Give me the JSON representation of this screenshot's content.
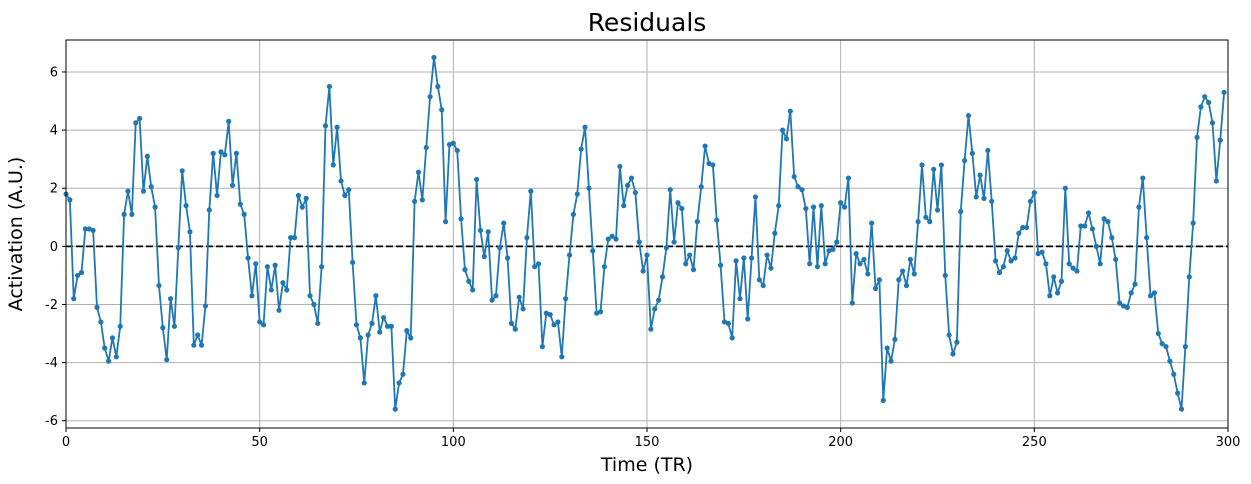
{
  "chart_data": {
    "type": "line",
    "title": "Residuals",
    "xlabel": "Time (TR)",
    "ylabel": "Activation (A.U.)",
    "xlim": [
      0,
      300
    ],
    "ylim": [
      -6.25,
      7.1
    ],
    "xticks": [
      0,
      50,
      100,
      150,
      200,
      250,
      300
    ],
    "yticks": [
      -6,
      -4,
      -2,
      0,
      2,
      4,
      6
    ],
    "grid": true,
    "reference_line": {
      "y": 0,
      "style": "dashed",
      "color": "#000000"
    },
    "series": [
      {
        "color": "#1f77b4",
        "marker": "circle",
        "values": [
          1.8,
          1.6,
          -1.8,
          -1.0,
          -0.9,
          0.6,
          0.6,
          0.55,
          -2.1,
          -2.6,
          -3.5,
          -3.95,
          -3.15,
          -3.8,
          -2.75,
          1.1,
          1.9,
          1.1,
          4.25,
          4.4,
          1.9,
          3.1,
          2.05,
          1.35,
          -1.35,
          -2.8,
          -3.9,
          -1.8,
          -2.75,
          -0.05,
          2.6,
          1.4,
          0.5,
          -3.4,
          -3.05,
          -3.4,
          -2.05,
          1.25,
          3.2,
          1.75,
          3.25,
          3.15,
          4.3,
          2.1,
          3.2,
          1.45,
          1.1,
          -0.4,
          -1.7,
          -0.6,
          -2.6,
          -2.7,
          -0.7,
          -1.5,
          -0.65,
          -2.2,
          -1.25,
          -1.5,
          0.3,
          0.3,
          1.75,
          1.35,
          1.65,
          -1.7,
          -2.0,
          -2.65,
          -0.7,
          4.15,
          5.5,
          2.8,
          4.1,
          2.25,
          1.75,
          1.95,
          -0.55,
          -2.7,
          -3.15,
          -4.7,
          -3.05,
          -2.65,
          -1.7,
          -2.95,
          -2.45,
          -2.75,
          -2.75,
          -5.6,
          -4.7,
          -4.4,
          -2.9,
          -3.15,
          1.55,
          2.55,
          1.6,
          3.4,
          5.15,
          6.5,
          5.5,
          4.7,
          0.85,
          3.5,
          3.55,
          3.3,
          0.95,
          -0.8,
          -1.2,
          -1.5,
          2.3,
          0.55,
          -0.35,
          0.5,
          -1.85,
          -1.7,
          -0.05,
          0.8,
          -0.4,
          -2.65,
          -2.85,
          -1.75,
          -2.15,
          0.3,
          1.9,
          -0.7,
          -0.6,
          -3.45,
          -2.3,
          -2.35,
          -2.7,
          -2.6,
          -3.8,
          -1.8,
          -0.3,
          1.1,
          1.8,
          3.35,
          4.1,
          2.0,
          -0.15,
          -2.3,
          -2.25,
          -0.7,
          0.25,
          0.35,
          0.25,
          2.75,
          1.4,
          2.1,
          2.35,
          1.85,
          0.15,
          -0.85,
          -0.3,
          -2.85,
          -2.15,
          -1.85,
          -1.05,
          -0.05,
          1.95,
          0.15,
          1.5,
          1.3,
          -0.6,
          -0.3,
          -0.8,
          0.85,
          2.05,
          3.45,
          2.85,
          2.8,
          0.9,
          -0.65,
          -2.6,
          -2.65,
          -3.15,
          -0.5,
          -1.8,
          -0.4,
          -2.5,
          -0.4,
          1.7,
          -1.15,
          -1.35,
          -0.3,
          -0.75,
          0.45,
          1.4,
          4.0,
          3.7,
          4.65,
          2.4,
          2.05,
          1.95,
          1.3,
          -0.6,
          1.35,
          -0.7,
          1.4,
          -0.6,
          -0.15,
          -0.1,
          0.15,
          1.5,
          1.35,
          2.35,
          -1.95,
          -0.25,
          -0.6,
          -0.45,
          -0.95,
          0.8,
          -1.45,
          -1.15,
          -5.3,
          -3.5,
          -3.95,
          -3.2,
          -1.15,
          -0.85,
          -1.35,
          -0.45,
          -0.95,
          0.85,
          2.8,
          1.0,
          0.85,
          2.65,
          1.25,
          2.8,
          -1.0,
          -3.05,
          -3.7,
          -3.3,
          1.2,
          2.95,
          4.5,
          3.2,
          1.7,
          2.45,
          1.65,
          3.3,
          1.55,
          -0.5,
          -0.9,
          -0.7,
          -0.15,
          -0.5,
          -0.4,
          0.45,
          0.65,
          0.65,
          1.55,
          1.85,
          -0.25,
          -0.2,
          -0.6,
          -1.7,
          -1.05,
          -1.6,
          -1.2,
          2.0,
          -0.6,
          -0.75,
          -0.85,
          0.7,
          0.7,
          1.15,
          0.6,
          0.0,
          -0.6,
          0.95,
          0.85,
          0.3,
          -0.45,
          -1.95,
          -2.05,
          -2.1,
          -1.6,
          -1.3,
          1.35,
          2.35,
          0.3,
          -1.7,
          -1.6,
          -3.0,
          -3.35,
          -3.45,
          -3.95,
          -4.4,
          -5.05,
          -5.6,
          -3.45,
          -1.05,
          0.8,
          3.75,
          4.8,
          5.15,
          4.95,
          4.25,
          2.25,
          3.65,
          5.3
        ]
      }
    ]
  }
}
